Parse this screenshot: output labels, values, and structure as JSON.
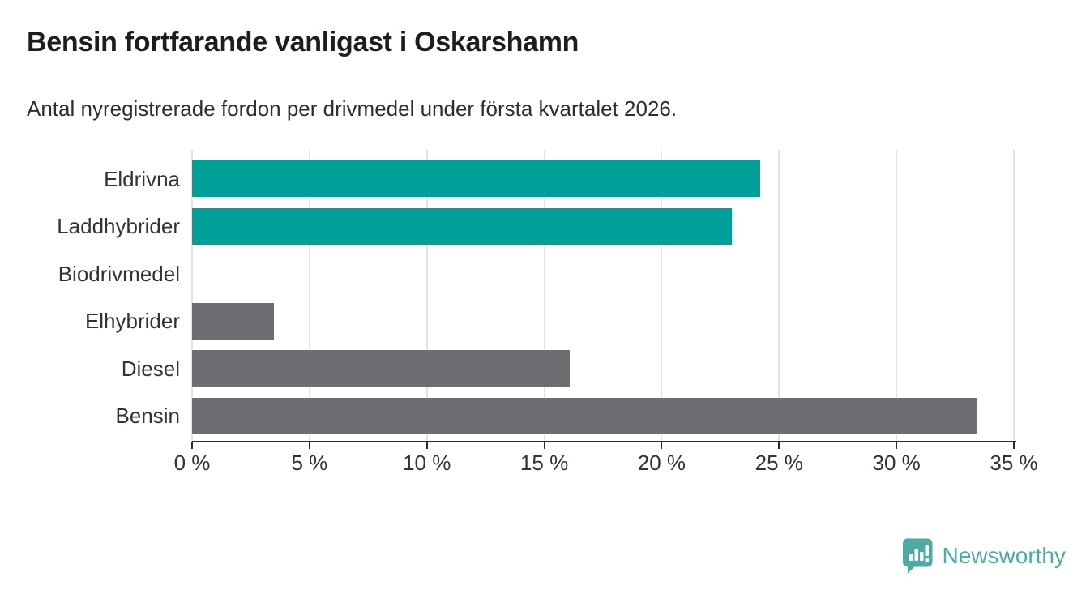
{
  "header": {
    "title": "Bensin fortfarande vanligast i Oskarshamn",
    "subtitle": "Antal nyregistrerade fordon per drivmedel under första kvartalet 2026."
  },
  "chart_data": {
    "type": "bar",
    "orientation": "horizontal",
    "title": "Bensin fortfarande vanligast i Oskarshamn",
    "subtitle": "Antal nyregistrerade fordon per drivmedel under första kvartalet 2026.",
    "categories": [
      "Eldrivna",
      "Laddhybrider",
      "Biodrivmedel",
      "Elhybrider",
      "Diesel",
      "Bensin"
    ],
    "values": [
      24.2,
      23.0,
      0.0,
      3.5,
      16.1,
      33.4
    ],
    "unit": "%",
    "bar_colors": [
      "#00a099",
      "#00a099",
      "#00a099",
      "#6e6e72",
      "#6e6e72",
      "#6e6e72"
    ],
    "xlim": [
      0,
      35
    ],
    "x_ticks": [
      0,
      5,
      10,
      15,
      20,
      25,
      30,
      35
    ],
    "x_tick_labels": [
      "0 %",
      "5 %",
      "10 %",
      "15 %",
      "20 %",
      "25 %",
      "30 %",
      "35 %"
    ],
    "grid": true,
    "legend": false,
    "xlabel": "",
    "ylabel": ""
  },
  "colors": {
    "accent_teal": "#00a099",
    "neutral_gray": "#6e6e72",
    "gridline": "#e3e3e3",
    "axis_line": "#2b2b2b",
    "title_text": "#1d1d1d",
    "body_text": "#333333",
    "brand_teal": "#4fa9a4",
    "background": "#ffffff"
  },
  "footer": {
    "brand": "Newsworthy"
  }
}
